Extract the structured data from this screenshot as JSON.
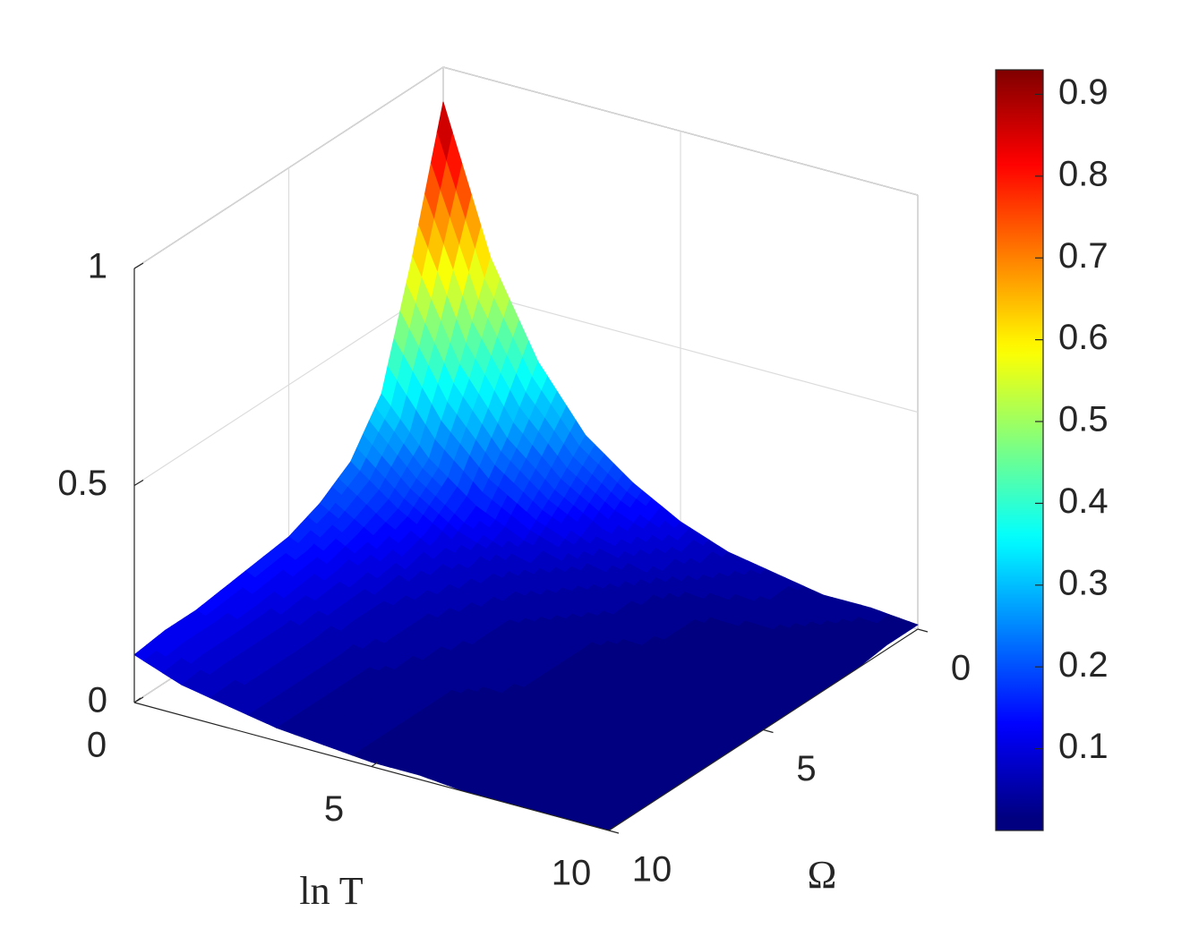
{
  "chart_data": {
    "type": "surface",
    "xlabel": "ln T",
    "ylabel": "Ω",
    "x": [
      0,
      1,
      2,
      3,
      4,
      5,
      6,
      7,
      8,
      9,
      10
    ],
    "y": [
      0,
      1,
      2,
      3,
      4,
      5,
      6,
      7,
      8,
      9,
      10
    ],
    "z": [
      [
        0.92,
        0.61,
        0.34,
        0.23,
        0.18,
        0.15,
        0.14,
        0.13,
        0.12,
        0.12,
        0.11
      ],
      [
        0.59,
        0.39,
        0.22,
        0.15,
        0.12,
        0.1,
        0.09,
        0.08,
        0.08,
        0.08,
        0.07
      ],
      [
        0.38,
        0.25,
        0.14,
        0.09,
        0.07,
        0.06,
        0.06,
        0.05,
        0.05,
        0.05,
        0.05
      ],
      [
        0.24,
        0.16,
        0.09,
        0.06,
        0.05,
        0.04,
        0.04,
        0.03,
        0.03,
        0.03,
        0.03
      ],
      [
        0.16,
        0.1,
        0.06,
        0.04,
        0.03,
        0.03,
        0.02,
        0.02,
        0.02,
        0.02,
        0.02
      ],
      [
        0.1,
        0.07,
        0.04,
        0.03,
        0.02,
        0.02,
        0.02,
        0.01,
        0.01,
        0.01,
        0.01
      ],
      [
        0.06,
        0.04,
        0.02,
        0.02,
        0.01,
        0.01,
        0.01,
        0.01,
        0.01,
        0.01,
        0.01
      ],
      [
        0.04,
        0.03,
        0.01,
        0.01,
        0.01,
        0.01,
        0.01,
        0.01,
        0.01,
        0.01,
        0.0
      ],
      [
        0.02,
        0.02,
        0.01,
        0.01,
        0.0,
        0.0,
        0.0,
        0.0,
        0.0,
        0.0,
        0.0
      ],
      [
        0.02,
        0.01,
        0.0,
        0.0,
        0.0,
        0.0,
        0.0,
        0.0,
        0.0,
        0.0,
        0.0
      ],
      [
        0.01,
        0.01,
        0.0,
        0.0,
        0.0,
        0.0,
        0.0,
        0.0,
        0.0,
        0.0,
        0.0
      ]
    ],
    "xlim": [
      0,
      10
    ],
    "xticks": [
      0,
      5,
      10
    ],
    "ylim": [
      0,
      10
    ],
    "yticks": [
      0,
      5,
      10
    ],
    "zlim": [
      0,
      1
    ],
    "zticks": [
      0,
      0.5,
      1
    ],
    "colormap": "jet",
    "clim": [
      0,
      0.93
    ],
    "cticks": [
      0.1,
      0.2,
      0.3,
      0.4,
      0.5,
      0.6,
      0.7,
      0.8,
      0.9
    ],
    "grid": true
  }
}
